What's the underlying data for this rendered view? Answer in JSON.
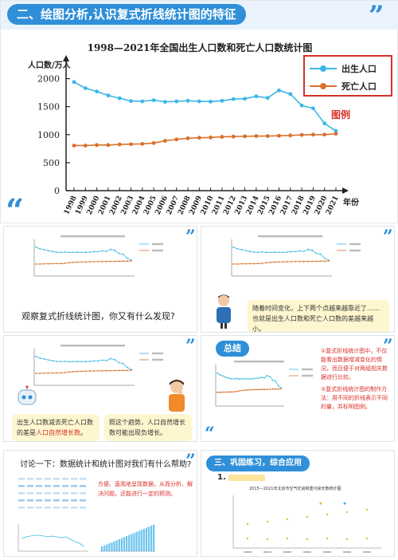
{
  "slide": {
    "title": "二、绘图分析,认识复式折线统计图的特征"
  },
  "chart_data": {
    "type": "line",
    "title": "1998—2021年全国出生人口数和死亡人口数统计图",
    "ylabel": "人口数/万人",
    "xlabel": "年份",
    "categories": [
      "1998",
      "1999",
      "2000",
      "2001",
      "2002",
      "2003",
      "2004",
      "2005",
      "2006",
      "2007",
      "2008",
      "2009",
      "2010",
      "2011",
      "2012",
      "2013",
      "2014",
      "2015",
      "2016",
      "2017",
      "2018",
      "2019",
      "2020",
      "2021"
    ],
    "ylim": [
      0,
      2250
    ],
    "yticks": [
      "0",
      "500",
      "1000",
      "1500",
      "2000"
    ],
    "series": [
      {
        "name": "出生人口",
        "color": "#3bb7e6",
        "values": [
          1940,
          1830,
          1770,
          1700,
          1650,
          1600,
          1595,
          1615,
          1585,
          1595,
          1605,
          1595,
          1590,
          1605,
          1635,
          1640,
          1685,
          1655,
          1790,
          1725,
          1520,
          1470,
          1200,
          1065
        ]
      },
      {
        "name": "死亡人口",
        "color": "#d9702a",
        "values": [
          805,
          805,
          815,
          815,
          825,
          830,
          835,
          850,
          890,
          915,
          935,
          945,
          950,
          960,
          965,
          970,
          975,
          975,
          980,
          985,
          995,
          1000,
          1000,
          1015
        ]
      }
    ],
    "grid": false,
    "legend": "top-right",
    "legend_caption": "图例"
  },
  "thumbnails": {
    "t1": {
      "question": "观察复式折线统计图，你又有什么发现?"
    },
    "t2": {
      "note": "随着时间变化，上下两个点越来越靠近了……也就是出生人口数和死亡人口数的差越来越小。"
    },
    "t3": {
      "note_left_a": "出生人口数减去死亡人口数",
      "note_left_b": "的差是",
      "note_left_hl": "人口自然增长数",
      "note_left_end": "。",
      "note_right": "照这个趋势，人口自然增长数可能出现负增长。"
    },
    "t4": {
      "badge": "总结",
      "point1": "①复式折线统计图中，不仅能看出数据增减变化的情况，而且便于对两组相关数据进行比较。",
      "point2": "②复式折线统计图的制作方法：用不同的折线表示不同的量，并标明图例。"
    },
    "t5": {
      "question": "讨论一下：数据统计和统计图对我们有什么帮助?",
      "answer": "方便、直观地呈现数据，从而分析、解决问题，还能进行一定的预测。"
    },
    "t6": {
      "section": "三、巩固练习，综合应用",
      "item_number": "1.",
      "chart_title": "2015—2021年北京市空气优良和重污染天数统计图"
    }
  },
  "colors": {
    "accent": "#2f8fd8",
    "red": "#d9302a",
    "birth": "#3bb7e6",
    "death": "#d9702a",
    "note_bg": "#fdf6cf"
  }
}
